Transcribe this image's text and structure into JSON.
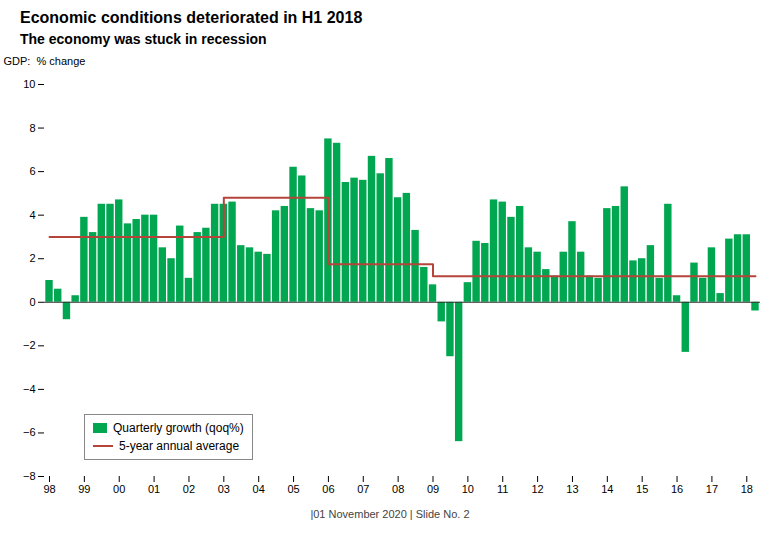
{
  "chart_data": {
    "type": "bar",
    "title": "Economic conditions deteriorated in H1 2018",
    "subtitle": "The economy was stuck in recession",
    "y_label": "GDP:  % change",
    "caption": "|01 November 2020 |  Slide No. 2",
    "categories": [
      "98",
      null,
      null,
      null,
      "99",
      null,
      null,
      null,
      "00",
      null,
      null,
      null,
      "01",
      null,
      null,
      null,
      "02",
      null,
      null,
      null,
      "03",
      null,
      null,
      null,
      "04",
      null,
      null,
      null,
      "05",
      null,
      null,
      null,
      "06",
      null,
      null,
      null,
      "07",
      null,
      null,
      null,
      "08",
      null,
      null,
      null,
      "09",
      null,
      null,
      null,
      "10",
      null,
      null,
      null,
      "11",
      null,
      null,
      null,
      "12",
      null,
      null,
      null,
      "13",
      null,
      null,
      null,
      "14",
      null,
      null,
      null,
      "15",
      null,
      null,
      null,
      "16",
      null,
      null,
      null,
      "17",
      null,
      null,
      null,
      "18",
      null
    ],
    "series": [
      {
        "name": "Quarterly growth (qoq%)",
        "type": "bar",
        "color": "#00a650",
        "values": [
          1.0,
          0.6,
          -0.8,
          0.3,
          3.9,
          3.2,
          4.5,
          4.5,
          4.7,
          3.6,
          3.8,
          4.0,
          4.0,
          2.5,
          2.0,
          3.5,
          1.1,
          3.2,
          3.4,
          4.5,
          4.5,
          4.6,
          2.6,
          2.5,
          2.3,
          2.2,
          4.2,
          4.4,
          6.2,
          5.8,
          4.3,
          4.2,
          7.5,
          7.3,
          5.5,
          5.7,
          5.6,
          6.7,
          5.9,
          6.6,
          4.8,
          5.0,
          3.3,
          1.6,
          0.8,
          -0.9,
          -2.5,
          -6.4,
          0.9,
          2.8,
          2.7,
          4.7,
          4.6,
          3.9,
          4.4,
          2.5,
          2.3,
          1.5,
          1.2,
          2.3,
          3.7,
          2.3,
          1.2,
          1.1,
          4.3,
          4.4,
          5.3,
          1.9,
          2.0,
          2.6,
          1.1,
          4.5,
          0.3,
          -2.3,
          1.8,
          1.1,
          2.5,
          0.4,
          2.9,
          3.1,
          3.1,
          -0.4
        ]
      },
      {
        "name": "5-year annual average",
        "type": "line",
        "color": "#b5443a",
        "x": [
          0,
          20,
          20,
          32,
          32,
          44,
          44,
          81
        ],
        "values": [
          3.0,
          3.0,
          4.8,
          4.8,
          1.75,
          1.75,
          1.2,
          1.2
        ]
      }
    ],
    "ylim": [
      -8,
      10
    ],
    "yticks": [
      -8,
      -6,
      -4,
      -2,
      0,
      2,
      4,
      6,
      8,
      10
    ],
    "grid": false,
    "legend": "lower left"
  }
}
